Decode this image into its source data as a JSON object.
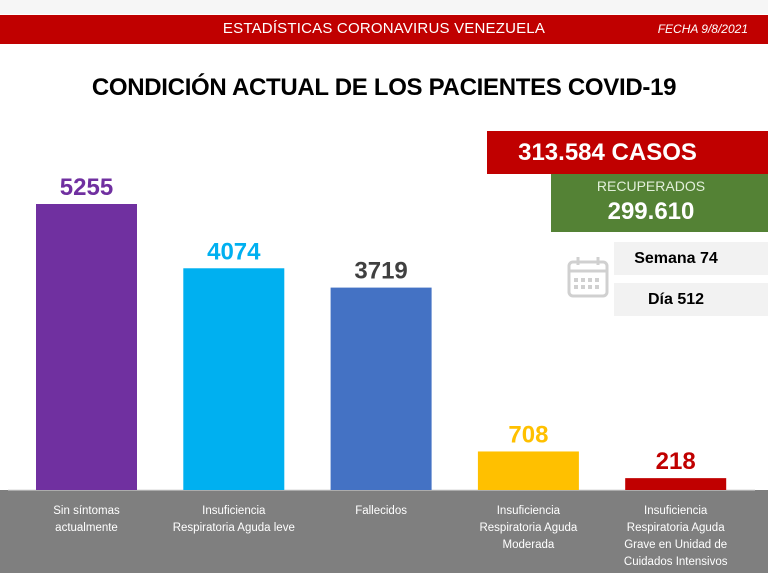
{
  "header": {
    "banner_title": "ESTADÍSTICAS CORONAVIRUS VENEZUELA",
    "date": "FECHA 9/8/2021"
  },
  "summary": {
    "cases": "313.584 CASOS",
    "recovered_label": "RECUPERADOS",
    "recovered_value": "299.610",
    "week": "Semana 74",
    "day": "Día 512",
    "calendar_icon": "calendar-icon"
  },
  "colors": {
    "banner": "#c00000",
    "recovered": "#548235",
    "label_panel": "#7f7f7f"
  },
  "chart_data": {
    "type": "bar",
    "title": "CONDICIÓN ACTUAL DE LOS PACIENTES COVID-19",
    "xlabel": "",
    "ylabel": "",
    "ylim": [
      0,
      5255
    ],
    "grid": false,
    "legend": "none",
    "categories": [
      "Sin síntomas actualmente",
      "Insuficiencia Respiratoria Aguda leve",
      "Fallecidos",
      "Insuficiencia Respiratoria Aguda Moderada",
      "Insuficiencia Respiratoria Aguda Grave en Unidad de Cuidados Intensivos"
    ],
    "category_lines": [
      [
        "Sin síntomas",
        "actualmente"
      ],
      [
        "Insuficiencia",
        "Respiratoria Aguda leve"
      ],
      [
        "Fallecidos"
      ],
      [
        "Insuficiencia",
        "Respiratoria Aguda",
        "Moderada"
      ],
      [
        "Insuficiencia",
        "Respiratoria Aguda",
        "Grave en Unidad de",
        "Cuidados Intensivos"
      ]
    ],
    "values": [
      5255,
      4074,
      3719,
      708,
      218
    ],
    "data_labels": [
      "5255",
      "4074",
      "3719",
      "708",
      "218"
    ],
    "bar_colors": [
      "#7030a0",
      "#00b0f0",
      "#4472c4",
      "#ffc000",
      "#c00000"
    ],
    "label_colors": [
      "#7030a0",
      "#00b0f0",
      "#404040",
      "#ffc000",
      "#c00000"
    ]
  }
}
